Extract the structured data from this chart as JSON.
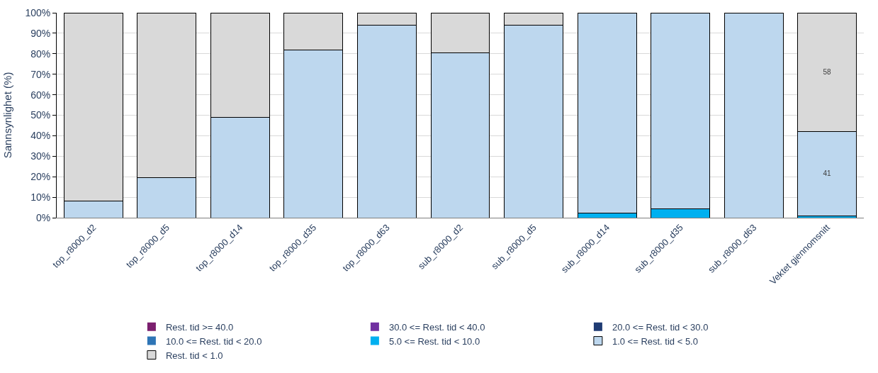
{
  "chart_data": {
    "type": "bar",
    "stacked": true,
    "ylabel": "Sannsynlighet (%)",
    "categories": [
      "top_r8000_d2",
      "top_r8000_d5",
      "top_r8000_d14",
      "top_r8000_d35",
      "top_r8000_d63",
      "sub_r8000_d2",
      "sub_r8000_d5",
      "sub_r8000_d14",
      "sub_r8000_d35",
      "sub_r8000_d63",
      "Vektet gjennomsnitt"
    ],
    "series": [
      {
        "name": "Rest. tid >= 40.0",
        "color": "#7b1f6e",
        "values": [
          0,
          0,
          0,
          0,
          0,
          0,
          0,
          0,
          0,
          0,
          0
        ]
      },
      {
        "name": "30.0 <= Rest. tid < 40.0",
        "color": "#7030a0",
        "values": [
          0,
          0,
          0,
          0,
          0,
          0,
          0,
          0,
          0,
          0,
          0
        ]
      },
      {
        "name": "20.0 <= Rest. tid < 30.0",
        "color": "#1f3b73",
        "values": [
          0,
          0,
          0,
          0,
          0,
          0,
          0,
          0,
          0,
          0,
          0
        ]
      },
      {
        "name": "10.0 <= Rest. tid < 20.0",
        "color": "#2e75b6",
        "values": [
          0,
          0,
          0,
          0,
          0,
          0,
          0,
          0,
          0,
          0,
          0
        ]
      },
      {
        "name": "5.0 <= Rest. tid < 10.0",
        "color": "#00b0f0",
        "values": [
          0,
          0,
          0,
          0,
          0,
          0,
          0,
          2.3,
          4.5,
          0,
          1
        ]
      },
      {
        "name": "1.0 <= Rest. tid < 5.0",
        "color": "#bdd7ee",
        "values": [
          8,
          19.5,
          49,
          82,
          94,
          80.5,
          94,
          97.7,
          95.5,
          100,
          41
        ],
        "value_labels": [
          null,
          null,
          null,
          null,
          null,
          null,
          null,
          null,
          null,
          null,
          "41"
        ]
      },
      {
        "name": "Rest. tid < 1.0",
        "color": "#d9d9d9",
        "values": [
          92,
          80.5,
          51,
          18,
          6,
          19.5,
          6,
          0,
          0,
          0,
          58
        ],
        "value_labels": [
          null,
          null,
          null,
          null,
          null,
          null,
          null,
          null,
          null,
          null,
          "58"
        ]
      }
    ],
    "ylim": [
      0,
      100
    ],
    "yticks": [
      {
        "value": 0,
        "label": "0%"
      },
      {
        "value": 10,
        "label": "10%"
      },
      {
        "value": 20,
        "label": "20%"
      },
      {
        "value": 30,
        "label": "30%"
      },
      {
        "value": 40,
        "label": "40%"
      },
      {
        "value": 50,
        "label": "50%"
      },
      {
        "value": 60,
        "label": "60%"
      },
      {
        "value": 70,
        "label": "70%"
      },
      {
        "value": 80,
        "label": "80%"
      },
      {
        "value": 90,
        "label": "90%"
      },
      {
        "value": 100,
        "label": "100%"
      }
    ],
    "grid": "y",
    "legend": "bottom"
  }
}
